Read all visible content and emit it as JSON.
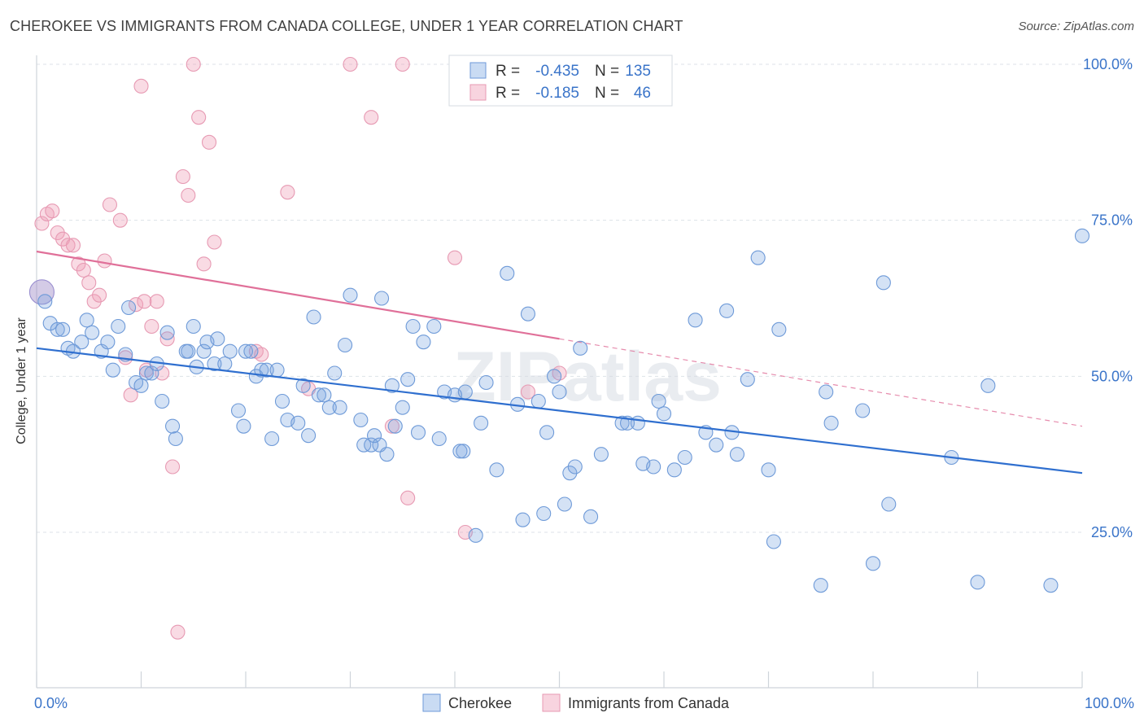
{
  "title": "CHEROKEE VS IMMIGRANTS FROM CANADA COLLEGE, UNDER 1 YEAR CORRELATION CHART",
  "source": "Source: ZipAtlas.com",
  "watermark": "ZIPatlas",
  "colors": {
    "blue": "#5b8fd9",
    "blue_line": "#2f6fcf",
    "pink": "#f0a0b8",
    "pink_line": "#e07099",
    "axis_text": "#3a74c9"
  },
  "chart_data": {
    "type": "scatter",
    "xlabel": "",
    "ylabel": "College, Under 1 year",
    "xlim": [
      0,
      100
    ],
    "ylim": [
      0,
      105
    ],
    "x_tick_labels": [
      "0.0%",
      "100.0%"
    ],
    "y_ticks": [
      {
        "value": 25,
        "label": "25.0%"
      },
      {
        "value": 50,
        "label": "50.0%"
      },
      {
        "value": 75,
        "label": "75.0%"
      },
      {
        "value": 100,
        "label": "100.0%"
      }
    ],
    "grid": true,
    "legend_position": "top-center",
    "legend": [
      {
        "series": "Cherokee",
        "r_label": "R =",
        "r_value": "-0.435",
        "n_label": "N =",
        "n_value": "135"
      },
      {
        "series": "Immigrants from Canada",
        "r_label": "R =",
        "r_value": "-0.185",
        "n_label": "N =",
        "n_value": "46"
      }
    ],
    "series": [
      {
        "name": "Cherokee",
        "color": "#5b8fd9",
        "trend": {
          "x0": 0,
          "y0": 54.5,
          "x1": 100,
          "y1": 34.5
        },
        "points": [
          [
            0.5,
            63.5
          ],
          [
            0.8,
            62
          ],
          [
            1.3,
            58.5
          ],
          [
            2,
            57.5
          ],
          [
            2.5,
            57.5
          ],
          [
            3,
            54.5
          ],
          [
            3.5,
            54
          ],
          [
            4.3,
            55.5
          ],
          [
            4.8,
            59
          ],
          [
            5.3,
            57
          ],
          [
            6.2,
            54
          ],
          [
            6.8,
            55.5
          ],
          [
            7.3,
            51
          ],
          [
            7.8,
            58
          ],
          [
            8.5,
            53.5
          ],
          [
            8.8,
            61
          ],
          [
            9.5,
            49
          ],
          [
            10,
            48.5
          ],
          [
            10.5,
            50.5
          ],
          [
            11,
            50.5
          ],
          [
            11.5,
            52
          ],
          [
            12,
            46
          ],
          [
            12.5,
            57
          ],
          [
            13,
            42
          ],
          [
            13.3,
            40
          ],
          [
            14.3,
            54
          ],
          [
            14.5,
            54
          ],
          [
            15,
            58
          ],
          [
            15.3,
            51.5
          ],
          [
            16,
            54
          ],
          [
            16.3,
            55.5
          ],
          [
            17,
            52
          ],
          [
            17.3,
            56
          ],
          [
            18,
            52
          ],
          [
            18.5,
            54
          ],
          [
            19.3,
            44.5
          ],
          [
            19.8,
            42
          ],
          [
            20,
            54
          ],
          [
            20.5,
            54
          ],
          [
            21,
            50
          ],
          [
            21.5,
            51
          ],
          [
            22,
            51
          ],
          [
            22.5,
            40
          ],
          [
            23,
            51
          ],
          [
            23.5,
            46
          ],
          [
            24,
            43
          ],
          [
            25,
            42.5
          ],
          [
            25.5,
            48.5
          ],
          [
            26,
            40.5
          ],
          [
            26.5,
            59.5
          ],
          [
            27,
            47
          ],
          [
            27.5,
            47
          ],
          [
            28,
            45
          ],
          [
            28.5,
            50.5
          ],
          [
            29,
            45
          ],
          [
            29.5,
            55
          ],
          [
            30,
            63
          ],
          [
            31,
            43
          ],
          [
            31.3,
            39
          ],
          [
            32,
            39
          ],
          [
            32.3,
            40.5
          ],
          [
            32.8,
            39
          ],
          [
            33,
            62.5
          ],
          [
            33.5,
            37.5
          ],
          [
            34,
            48.5
          ],
          [
            34.3,
            42
          ],
          [
            35,
            45
          ],
          [
            35.5,
            49.5
          ],
          [
            36,
            58
          ],
          [
            36.5,
            41
          ],
          [
            37,
            55.5
          ],
          [
            38,
            58
          ],
          [
            38.5,
            40
          ],
          [
            39,
            47.5
          ],
          [
            40,
            47
          ],
          [
            40.5,
            38
          ],
          [
            40.8,
            38
          ],
          [
            41,
            47.5
          ],
          [
            42,
            24.5
          ],
          [
            42.5,
            42.5
          ],
          [
            43,
            49
          ],
          [
            44,
            35
          ],
          [
            45,
            66.5
          ],
          [
            46,
            45.5
          ],
          [
            46.5,
            27
          ],
          [
            47,
            60
          ],
          [
            48,
            46
          ],
          [
            48.5,
            28
          ],
          [
            48.8,
            41
          ],
          [
            49.5,
            50
          ],
          [
            50,
            47.5
          ],
          [
            50.5,
            29.5
          ],
          [
            51,
            34.5
          ],
          [
            51.5,
            35.5
          ],
          [
            52,
            54.5
          ],
          [
            53,
            27.5
          ],
          [
            54,
            37.5
          ],
          [
            56,
            42.5
          ],
          [
            56.5,
            42.5
          ],
          [
            57.5,
            42.5
          ],
          [
            58,
            36
          ],
          [
            59,
            35.5
          ],
          [
            59.5,
            46
          ],
          [
            60,
            44
          ],
          [
            61,
            35
          ],
          [
            62,
            37
          ],
          [
            63,
            59
          ],
          [
            64,
            41
          ],
          [
            65,
            39
          ],
          [
            66,
            60.5
          ],
          [
            66.5,
            41
          ],
          [
            67,
            37.5
          ],
          [
            68,
            49.5
          ],
          [
            69,
            69
          ],
          [
            70,
            35
          ],
          [
            70.5,
            23.5
          ],
          [
            71,
            57.5
          ],
          [
            75,
            16.5
          ],
          [
            75.5,
            47.5
          ],
          [
            76,
            42.5
          ],
          [
            79,
            44.5
          ],
          [
            80,
            20
          ],
          [
            81,
            65
          ],
          [
            81.5,
            29.5
          ],
          [
            87.5,
            37
          ],
          [
            90,
            17
          ],
          [
            91,
            48.5
          ],
          [
            97,
            16.5
          ],
          [
            100,
            72.5
          ]
        ]
      },
      {
        "name": "Immigrants from Canada",
        "color": "#f0a0b8",
        "trend": {
          "x0": 0,
          "y0": 70,
          "x1": 50,
          "y1": 56,
          "dashed_to_x": 100,
          "dashed_to_y": 42
        },
        "points": [
          [
            0.5,
            74.5
          ],
          [
            1,
            76
          ],
          [
            1.5,
            76.5
          ],
          [
            2,
            73
          ],
          [
            2.5,
            72
          ],
          [
            3,
            71
          ],
          [
            3.5,
            71
          ],
          [
            4,
            68
          ],
          [
            4.5,
            67
          ],
          [
            5,
            65
          ],
          [
            5.5,
            62
          ],
          [
            6,
            63
          ],
          [
            6.5,
            68.5
          ],
          [
            7,
            77.5
          ],
          [
            8,
            75
          ],
          [
            8.5,
            53
          ],
          [
            9,
            47
          ],
          [
            9.5,
            61.5
          ],
          [
            10,
            96.5
          ],
          [
            10.3,
            62
          ],
          [
            10.5,
            51
          ],
          [
            11,
            58
          ],
          [
            11.5,
            62
          ],
          [
            12,
            50.5
          ],
          [
            12.5,
            56
          ],
          [
            13,
            35.5
          ],
          [
            13.5,
            9
          ],
          [
            14,
            82
          ],
          [
            14.5,
            79
          ],
          [
            15,
            100
          ],
          [
            15.5,
            91.5
          ],
          [
            16,
            68
          ],
          [
            16.5,
            87.5
          ],
          [
            17,
            71.5
          ],
          [
            21,
            54
          ],
          [
            21.5,
            53.5
          ],
          [
            24,
            79.5
          ],
          [
            26,
            48
          ],
          [
            30,
            100
          ],
          [
            32,
            91.5
          ],
          [
            34,
            42
          ],
          [
            35,
            100
          ],
          [
            35.5,
            30.5
          ],
          [
            40,
            69
          ],
          [
            41,
            25
          ],
          [
            47,
            47.5
          ],
          [
            50,
            50.5
          ]
        ]
      }
    ]
  }
}
